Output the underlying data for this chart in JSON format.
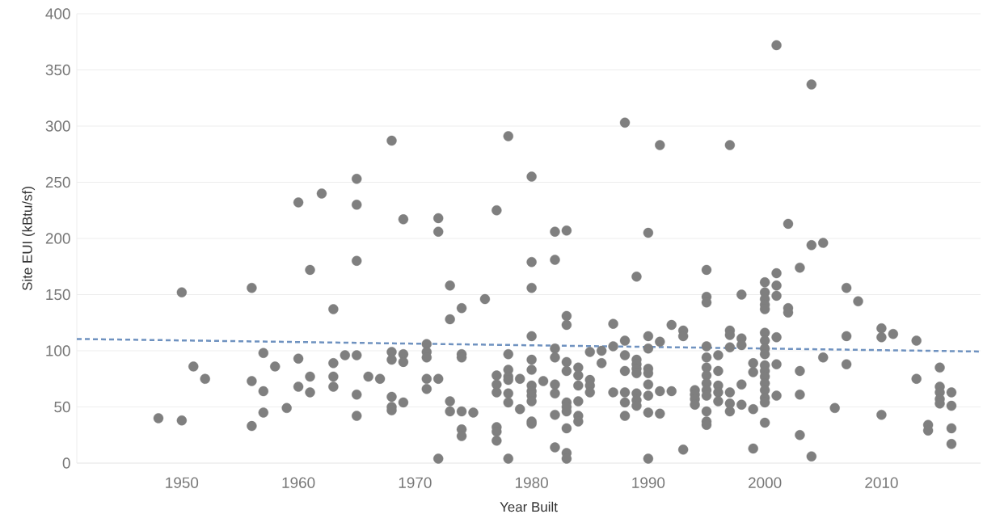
{
  "chart_data": {
    "type": "scatter",
    "xlabel": "Year Built",
    "ylabel": "Site EUI (kBtu/sf)",
    "xlim": [
      1941,
      2018.5
    ],
    "ylim": [
      0,
      400
    ],
    "xticks": [
      1950,
      1960,
      1970,
      1980,
      1990,
      2000,
      2010
    ],
    "yticks": [
      0,
      50,
      100,
      150,
      200,
      250,
      300,
      350,
      400
    ],
    "grid": "y",
    "series": [
      {
        "color": "#7f7f7f",
        "marker": "circle",
        "x": [
          1948,
          1950,
          1950,
          1951,
          1952,
          1956,
          1956,
          1956,
          1957,
          1957,
          1957,
          1958,
          1959,
          1960,
          1960,
          1960,
          1961,
          1961,
          1961,
          1962,
          1963,
          1963,
          1963,
          1963,
          1964,
          1965,
          1965,
          1965,
          1965,
          1965,
          1965,
          1966,
          1967,
          1968,
          1968,
          1968,
          1968,
          1968,
          1968,
          1969,
          1969,
          1969,
          1969,
          1971,
          1971,
          1971,
          1971,
          1971,
          1972,
          1972,
          1972,
          1972,
          1973,
          1973,
          1973,
          1973,
          1974,
          1974,
          1974,
          1974,
          1974,
          1974,
          1975,
          1976,
          1977,
          1977,
          1977,
          1977,
          1977,
          1977,
          1977,
          1978,
          1978,
          1978,
          1978,
          1978,
          1978,
          1978,
          1978,
          1979,
          1979,
          1980,
          1980,
          1980,
          1980,
          1980,
          1980,
          1980,
          1980,
          1980,
          1980,
          1980,
          1980,
          1981,
          1982,
          1982,
          1982,
          1982,
          1982,
          1982,
          1982,
          1982,
          1983,
          1983,
          1983,
          1983,
          1983,
          1983,
          1983,
          1983,
          1983,
          1983,
          1983,
          1984,
          1984,
          1984,
          1984,
          1984,
          1984,
          1985,
          1985,
          1985,
          1985,
          1986,
          1986,
          1987,
          1987,
          1987,
          1988,
          1988,
          1988,
          1988,
          1988,
          1988,
          1988,
          1989,
          1989,
          1989,
          1989,
          1989,
          1989,
          1989,
          1989,
          1990,
          1990,
          1990,
          1990,
          1990,
          1990,
          1990,
          1990,
          1990,
          1991,
          1991,
          1991,
          1991,
          1992,
          1992,
          1993,
          1993,
          1993,
          1994,
          1994,
          1994,
          1994,
          1995,
          1995,
          1995,
          1995,
          1995,
          1995,
          1995,
          1995,
          1995,
          1995,
          1995,
          1995,
          1995,
          1996,
          1996,
          1996,
          1996,
          1996,
          1997,
          1997,
          1997,
          1997,
          1997,
          1997,
          1997,
          1998,
          1998,
          1998,
          1998,
          1998,
          1999,
          1999,
          1999,
          1999,
          2000,
          2000,
          2000,
          2000,
          2000,
          2000,
          2000,
          2000,
          2000,
          2000,
          2000,
          2000,
          2000,
          2000,
          2000,
          2000,
          2000,
          2001,
          2001,
          2001,
          2001,
          2001,
          2001,
          2001,
          2002,
          2002,
          2002,
          2003,
          2003,
          2003,
          2003,
          2004,
          2004,
          2004,
          2005,
          2005,
          2006,
          2007,
          2007,
          2007,
          2008,
          2010,
          2010,
          2010,
          2011,
          2013,
          2013,
          2014,
          2014,
          2015,
          2015,
          2015,
          2015,
          2015,
          2016,
          2016,
          2016,
          2016
        ],
        "values": [
          40,
          152,
          38,
          86,
          75,
          156,
          73,
          33,
          98,
          64,
          45,
          86,
          49,
          232,
          93,
          68,
          172,
          77,
          63,
          240,
          137,
          89,
          77,
          68,
          96,
          253,
          230,
          180,
          96,
          61,
          42,
          77,
          75,
          287,
          99,
          92,
          59,
          50,
          47,
          217,
          97,
          90,
          54,
          106,
          99,
          94,
          75,
          66,
          218,
          206,
          75,
          4,
          158,
          128,
          55,
          46,
          138,
          97,
          94,
          46,
          30,
          24,
          45,
          146,
          225,
          78,
          70,
          63,
          32,
          28,
          20,
          291,
          97,
          83,
          77,
          74,
          62,
          54,
          4,
          75,
          48,
          255,
          179,
          156,
          113,
          92,
          83,
          69,
          64,
          60,
          55,
          37,
          35,
          73,
          206,
          181,
          102,
          94,
          70,
          62,
          43,
          14,
          207,
          131,
          123,
          90,
          82,
          54,
          50,
          46,
          31,
          9,
          4,
          85,
          78,
          69,
          55,
          42,
          37,
          99,
          74,
          69,
          63,
          100,
          89,
          124,
          104,
          63,
          303,
          109,
          96,
          82,
          63,
          54,
          42,
          166,
          92,
          88,
          84,
          80,
          62,
          56,
          51,
          205,
          113,
          102,
          84,
          80,
          70,
          60,
          45,
          4,
          283,
          108,
          64,
          44,
          123,
          64,
          118,
          113,
          12,
          65,
          61,
          57,
          52,
          172,
          148,
          143,
          104,
          94,
          85,
          78,
          71,
          65,
          60,
          46,
          37,
          34,
          96,
          82,
          69,
          63,
          55,
          283,
          118,
          114,
          103,
          63,
          53,
          46,
          150,
          111,
          105,
          70,
          52,
          89,
          81,
          48,
          13,
          161,
          152,
          146,
          141,
          137,
          116,
          109,
          102,
          97,
          87,
          82,
          77,
          71,
          65,
          58,
          54,
          36,
          372,
          169,
          158,
          149,
          112,
          88,
          60,
          213,
          138,
          134,
          174,
          82,
          61,
          25,
          337,
          194,
          6,
          196,
          94,
          49,
          156,
          113,
          88,
          144,
          120,
          112,
          43,
          115,
          109,
          75,
          34,
          29,
          85,
          68,
          63,
          57,
          53,
          63,
          51,
          31,
          17
        ]
      },
      {
        "type": "line",
        "color": "#6f92c0",
        "marker": "none",
        "line_style": "dashed",
        "x": [
          1941,
          2018.5
        ],
        "values": [
          110.5,
          99.3
        ]
      }
    ]
  }
}
